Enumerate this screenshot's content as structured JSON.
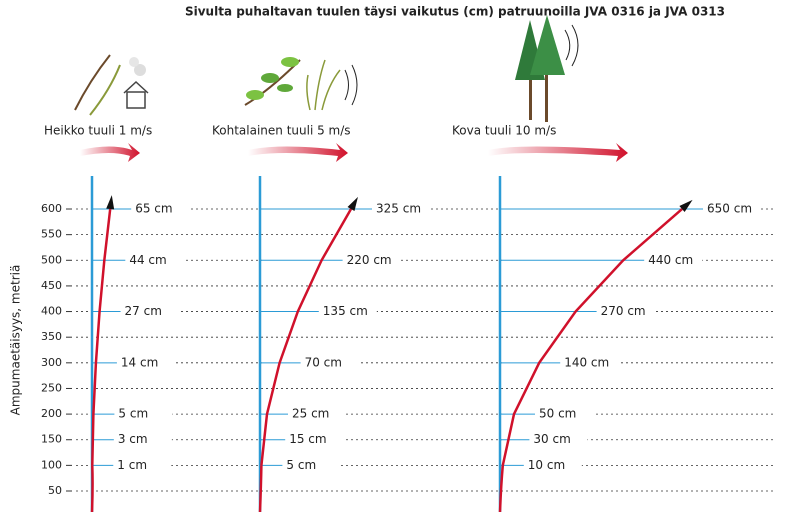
{
  "chart_data": {
    "type": "drift",
    "title": "Sivulta puhaltavan tuulen täysi vaikutus (cm) patruunoilla JVA 0316 ja JVA 0313",
    "y_label": "Ampumaetäisyys, metriä",
    "ylim": [
      0,
      650
    ],
    "yticks": [
      50,
      100,
      150,
      200,
      250,
      300,
      350,
      400,
      450,
      500,
      550,
      600
    ],
    "grid": true,
    "distances": [
      100,
      150,
      200,
      300,
      400,
      500,
      600
    ],
    "series": [
      {
        "name": "Heikko tuuli 1 m/s",
        "color": "#d0112b",
        "values": [
          1,
          3,
          5,
          14,
          27,
          44,
          65
        ],
        "value_labels": [
          "1 cm",
          "3 cm",
          "5 cm",
          "14 cm",
          "27 cm",
          "44 cm",
          "65 cm"
        ]
      },
      {
        "name": "Kohtalainen tuuli 5 m/s",
        "color": "#d0112b",
        "values": [
          5,
          15,
          25,
          70,
          135,
          220,
          325
        ],
        "value_labels": [
          "5 cm",
          "15 cm",
          "25 cm",
          "70 cm",
          "135 cm",
          "220 cm",
          "325 cm"
        ]
      },
      {
        "name": "Kova tuuli 10 m/s",
        "color": "#d0112b",
        "values": [
          10,
          30,
          50,
          140,
          270,
          440,
          650
        ],
        "value_labels": [
          "10 cm",
          "30 cm",
          "50 cm",
          "140 cm",
          "270 cm",
          "440 cm",
          "650 cm"
        ]
      }
    ]
  }
}
